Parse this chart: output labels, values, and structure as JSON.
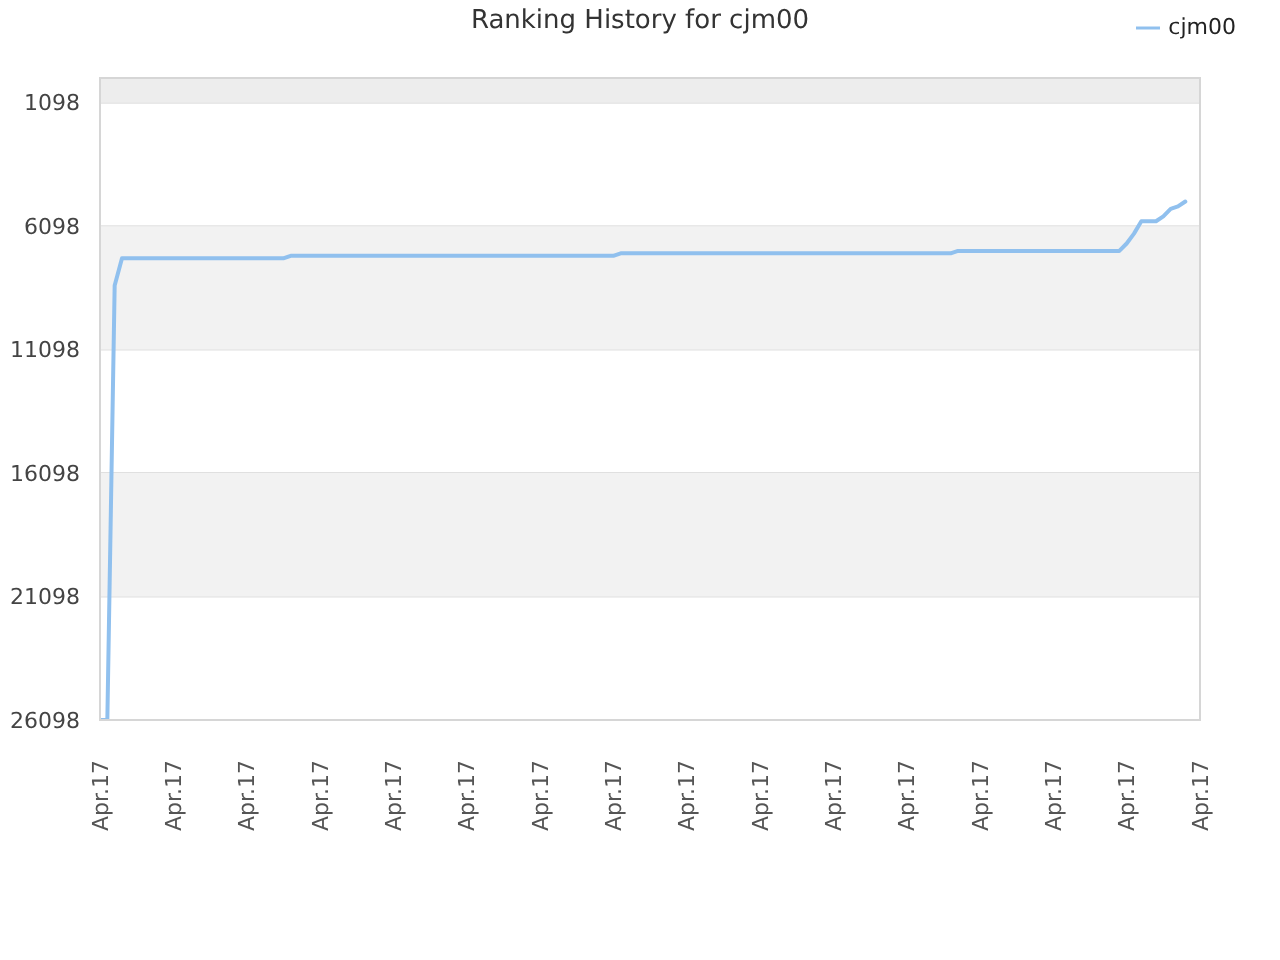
{
  "chart_data": {
    "type": "line",
    "title": "Ranking History for cjm00",
    "categories": [
      "Apr.17",
      null,
      null,
      null,
      null,
      null,
      null,
      null,
      null,
      null,
      "Apr.17",
      null,
      null,
      null,
      null,
      null,
      null,
      null,
      null,
      null,
      "Apr.17",
      null,
      null,
      null,
      null,
      null,
      null,
      null,
      null,
      null,
      "Apr.17",
      null,
      null,
      null,
      null,
      null,
      null,
      null,
      null,
      null,
      "Apr.17",
      null,
      null,
      null,
      null,
      null,
      null,
      null,
      null,
      null,
      "Apr.17",
      null,
      null,
      null,
      null,
      null,
      null,
      null,
      null,
      null,
      "Apr.17",
      null,
      null,
      null,
      null,
      null,
      null,
      null,
      null,
      null,
      "Apr.17",
      null,
      null,
      null,
      null,
      null,
      null,
      null,
      null,
      null,
      "Apr.17",
      null,
      null,
      null,
      null,
      null,
      null,
      null,
      null,
      null,
      "Apr.17",
      null,
      null,
      null,
      null,
      null,
      null,
      null,
      null,
      null,
      "Apr.17",
      null,
      null,
      null,
      null,
      null,
      null,
      null,
      null,
      null,
      "Apr.17",
      null,
      null,
      null,
      null,
      null,
      null,
      null,
      null,
      null,
      "Apr.17",
      null,
      null,
      null,
      null,
      null,
      null,
      null,
      null,
      null,
      "Apr.17",
      null,
      null,
      null,
      null,
      null,
      null,
      null,
      null,
      null,
      "Apr.17",
      null,
      null,
      null,
      null,
      null,
      null,
      null,
      null,
      null,
      "Apr.17"
    ],
    "series": [
      {
        "name": "cjm00",
        "color": "#90c0ee",
        "values": [
          26098,
          26098,
          8500,
          7400,
          7400,
          7400,
          7400,
          7400,
          7400,
          7400,
          7400,
          7400,
          7400,
          7400,
          7400,
          7400,
          7400,
          7400,
          7400,
          7400,
          7400,
          7400,
          7400,
          7400,
          7400,
          7400,
          7300,
          7300,
          7300,
          7300,
          7300,
          7300,
          7300,
          7300,
          7300,
          7300,
          7300,
          7300,
          7300,
          7300,
          7300,
          7300,
          7300,
          7300,
          7300,
          7300,
          7300,
          7300,
          7300,
          7300,
          7300,
          7300,
          7300,
          7300,
          7300,
          7300,
          7300,
          7300,
          7300,
          7300,
          7300,
          7300,
          7300,
          7300,
          7300,
          7300,
          7300,
          7300,
          7300,
          7300,
          7300,
          7200,
          7200,
          7200,
          7200,
          7200,
          7200,
          7200,
          7200,
          7200,
          7200,
          7200,
          7200,
          7200,
          7200,
          7200,
          7200,
          7200,
          7200,
          7200,
          7200,
          7200,
          7200,
          7200,
          7200,
          7200,
          7200,
          7200,
          7200,
          7200,
          7200,
          7200,
          7200,
          7200,
          7200,
          7200,
          7200,
          7200,
          7200,
          7200,
          7200,
          7200,
          7200,
          7200,
          7200,
          7200,
          7200,
          7100,
          7100,
          7100,
          7100,
          7100,
          7100,
          7100,
          7100,
          7100,
          7100,
          7100,
          7100,
          7100,
          7100,
          7100,
          7100,
          7100,
          7100,
          7100,
          7100,
          7100,
          7100,
          7100,
          6800,
          6400,
          5900,
          5900,
          5900,
          5700,
          5400,
          5300,
          5100,
          null,
          null
        ]
      }
    ],
    "ylim": [
      26098,
      98
    ],
    "yticks": [
      1098,
      6098,
      11098,
      16098,
      21098,
      26098
    ],
    "bands": [
      {
        "axis": "y",
        "from": 98,
        "to": 1098,
        "color": "#ededed"
      },
      {
        "axis": "y",
        "from": 6098,
        "to": 11098,
        "color": "#f2f2f2"
      },
      {
        "axis": "y",
        "from": 16098,
        "to": 21098,
        "color": "#f2f2f2"
      }
    ],
    "grid": "y",
    "legend": "top right",
    "marker": "none",
    "line_style": "solid"
  }
}
